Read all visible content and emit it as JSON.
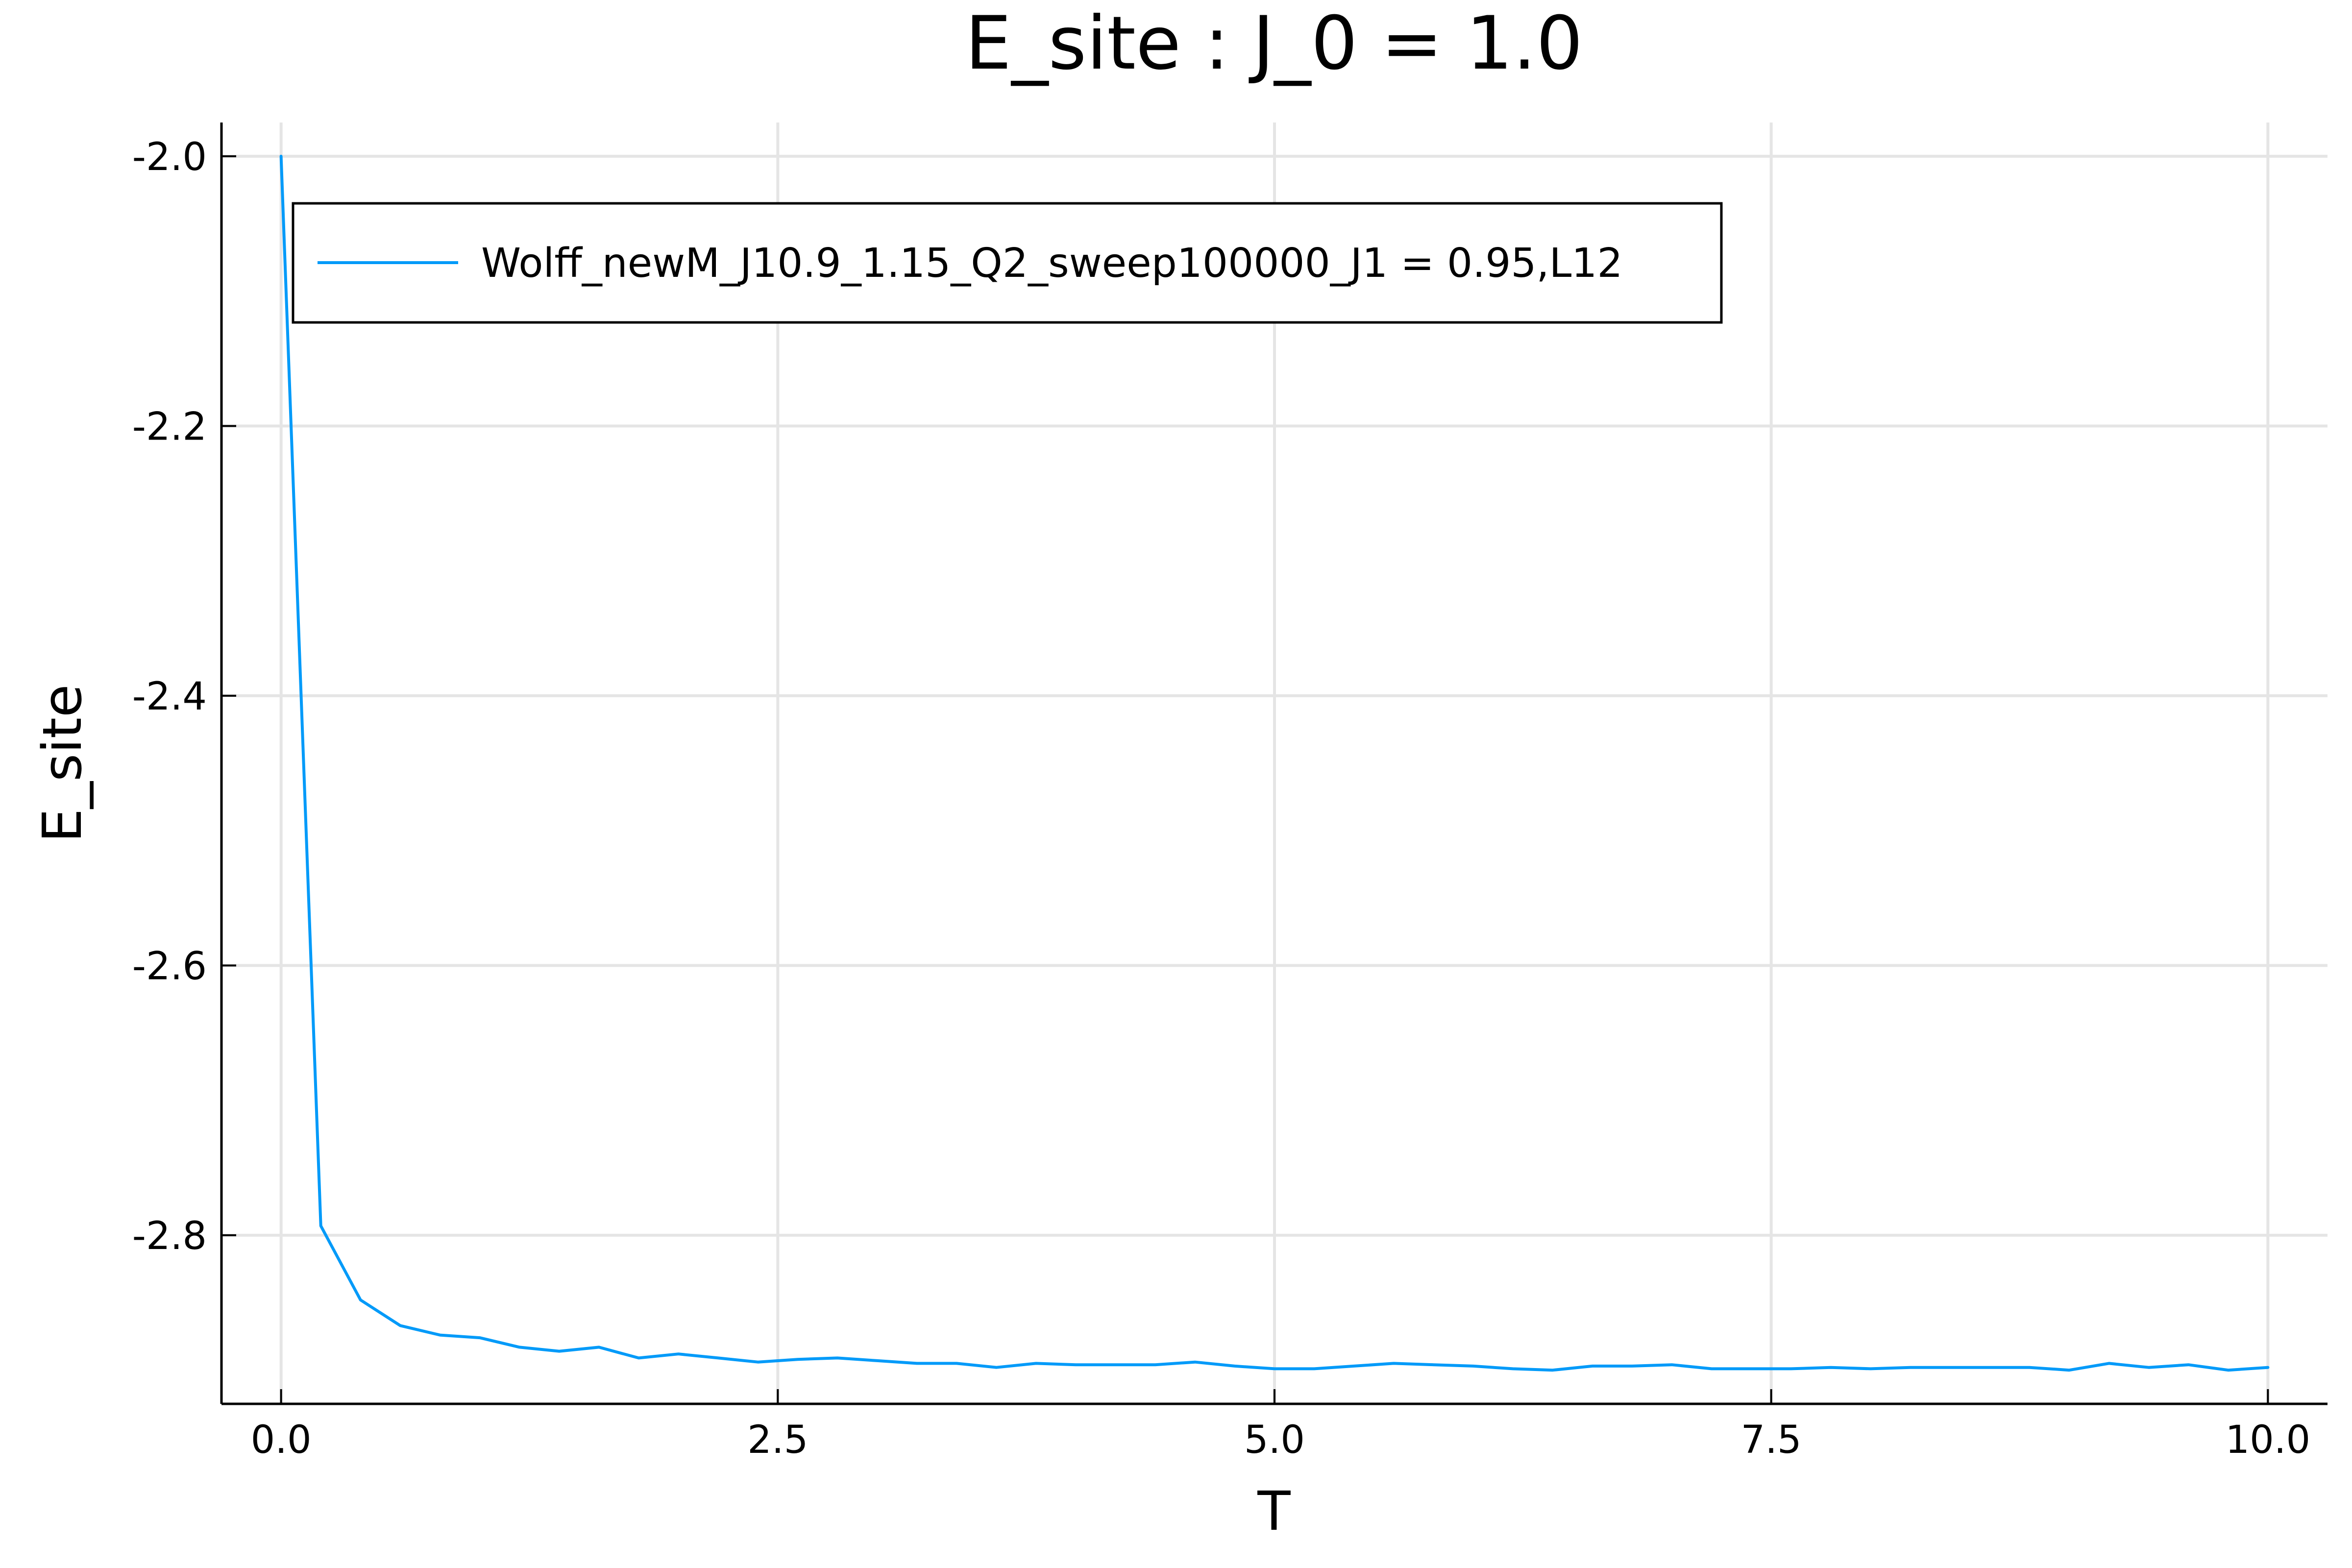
{
  "chart_data": {
    "type": "line",
    "title": "E_site : J_0 = 1.0",
    "xlabel": "T",
    "ylabel": "E_site",
    "xlim": [
      -0.3,
      10.3
    ],
    "ylim": [
      -2.925,
      -1.975
    ],
    "xticks": [
      0.0,
      2.5,
      5.0,
      7.5,
      10.0
    ],
    "xtick_labels": [
      "0.0",
      "2.5",
      "5.0",
      "7.5",
      "10.0"
    ],
    "yticks": [
      -2.0,
      -2.2,
      -2.4,
      -2.6,
      -2.8
    ],
    "ytick_labels": [
      "-2.0",
      "-2.2",
      "-2.4",
      "-2.6",
      "-2.8"
    ],
    "grid": true,
    "legend_position": "top-left",
    "series": [
      {
        "name": "Wolff_newM_J10.9_1.15_Q2_sweep100000_J1 = 0.95,L12",
        "color": "#009af9",
        "x": [
          0.0,
          0.2,
          0.4,
          0.6,
          0.8,
          1.0,
          1.2,
          1.4,
          1.6,
          1.8,
          2.0,
          2.2,
          2.4,
          2.6,
          2.8,
          3.0,
          3.2,
          3.4,
          3.6,
          3.8,
          4.0,
          4.2,
          4.4,
          4.6,
          4.8,
          5.0,
          5.2,
          5.4,
          5.6,
          5.8,
          6.0,
          6.2,
          6.4,
          6.6,
          6.8,
          7.0,
          7.2,
          7.4,
          7.6,
          7.8,
          8.0,
          8.2,
          8.4,
          8.6,
          8.8,
          9.0,
          9.2,
          9.4,
          9.6,
          9.8,
          10.0
        ],
        "y": [
          -2.0,
          -2.793,
          -2.848,
          -2.867,
          -2.874,
          -2.876,
          -2.883,
          -2.886,
          -2.883,
          -2.891,
          -2.888,
          -2.891,
          -2.894,
          -2.892,
          -2.891,
          -2.893,
          -2.895,
          -2.895,
          -2.898,
          -2.895,
          -2.896,
          -2.896,
          -2.896,
          -2.894,
          -2.897,
          -2.899,
          -2.899,
          -2.897,
          -2.895,
          -2.896,
          -2.897,
          -2.899,
          -2.9,
          -2.897,
          -2.897,
          -2.896,
          -2.899,
          -2.899,
          -2.899,
          -2.898,
          -2.899,
          -2.898,
          -2.898,
          -2.898,
          -2.898,
          -2.9,
          -2.895,
          -2.898,
          -2.896,
          -2.9,
          -2.898
        ]
      }
    ]
  }
}
